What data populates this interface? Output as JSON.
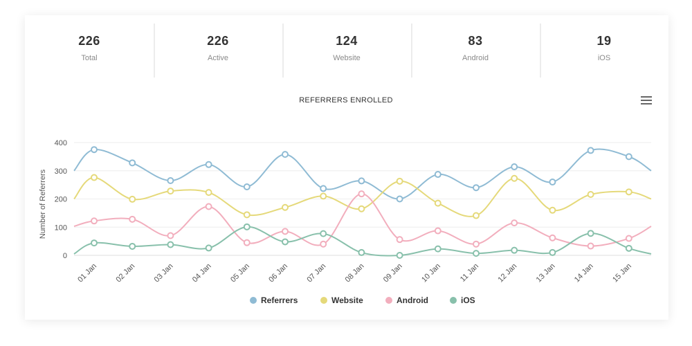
{
  "stats": [
    {
      "value": "226",
      "label": "Total"
    },
    {
      "value": "226",
      "label": "Active"
    },
    {
      "value": "124",
      "label": "Website"
    },
    {
      "value": "83",
      "label": "Android"
    },
    {
      "value": "19",
      "label": "iOS"
    }
  ],
  "menu_icon": "hamburger-menu-icon",
  "chart_data": {
    "type": "line",
    "title": "REFERRERS ENROLLED",
    "xlabel": "",
    "ylabel": "Number of Referrers",
    "ylim": [
      0,
      400
    ],
    "yticks": [
      0,
      100,
      200,
      300,
      400
    ],
    "grid": true,
    "legend_position": "bottom",
    "categories": [
      "01 Jan",
      "02 Jan",
      "03 Jan",
      "04 Jan",
      "05 Jan",
      "06 Jan",
      "07 Jan",
      "08 Jan",
      "09 Jan",
      "10 Jan",
      "11 Jan",
      "12 Jan",
      "13 Jan",
      "14 Jan",
      "15 Jan"
    ],
    "series": [
      {
        "name": "Referrers",
        "color": "#8fbbd4",
        "start": 300,
        "end": 300,
        "values": [
          375,
          328,
          265,
          322,
          243,
          358,
          237,
          264,
          200,
          287,
          240,
          314,
          260,
          372,
          350
        ]
      },
      {
        "name": "Website",
        "color": "#e5d97a",
        "start": 200,
        "end": 200,
        "values": [
          276,
          199,
          228,
          223,
          144,
          170,
          210,
          165,
          263,
          185,
          141,
          273,
          160,
          216,
          225
        ]
      },
      {
        "name": "Android",
        "color": "#f2aebd",
        "start": 103,
        "end": 103,
        "values": [
          122,
          128,
          70,
          173,
          45,
          85,
          40,
          218,
          56,
          87,
          40,
          115,
          62,
          33,
          60
        ]
      },
      {
        "name": "iOS",
        "color": "#88c0ab",
        "start": 5,
        "end": 5,
        "values": [
          44,
          32,
          38,
          26,
          101,
          48,
          77,
          10,
          0,
          23,
          7,
          18,
          10,
          78,
          25
        ]
      }
    ]
  }
}
